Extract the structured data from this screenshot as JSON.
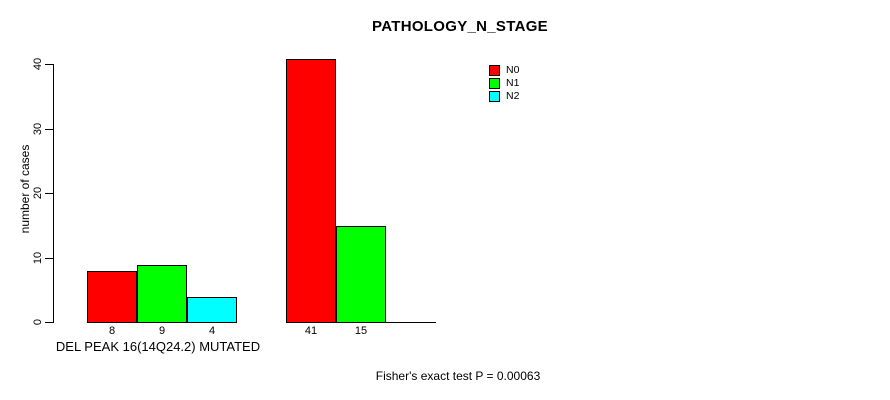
{
  "chart_data": {
    "type": "bar",
    "title": "PATHOLOGY_N_STAGE",
    "ylabel": "number of cases",
    "xlabel": "DEL PEAK 16(14Q24.2) MUTATED",
    "ylim": [
      0,
      40
    ],
    "yticks": [
      0,
      10,
      20,
      30,
      40
    ],
    "grid": false,
    "num_groups": 2,
    "series": [
      {
        "name": "N0",
        "color": "#ff0000",
        "values": [
          8,
          41
        ]
      },
      {
        "name": "N1",
        "color": "#00ff00",
        "values": [
          9,
          15
        ]
      },
      {
        "name": "N2",
        "color": "#00ffff",
        "values": [
          4,
          0
        ]
      }
    ],
    "bar_value_labels": [
      [
        "8",
        "9",
        "4"
      ],
      [
        "41",
        "15"
      ]
    ],
    "legend": {
      "position": "top-right",
      "entries": [
        "N0",
        "N1",
        "N2"
      ]
    },
    "annotation": "Fisher's exact test P = 0.00063",
    "axis_color": "#000000",
    "background_color": "#ffffff"
  }
}
